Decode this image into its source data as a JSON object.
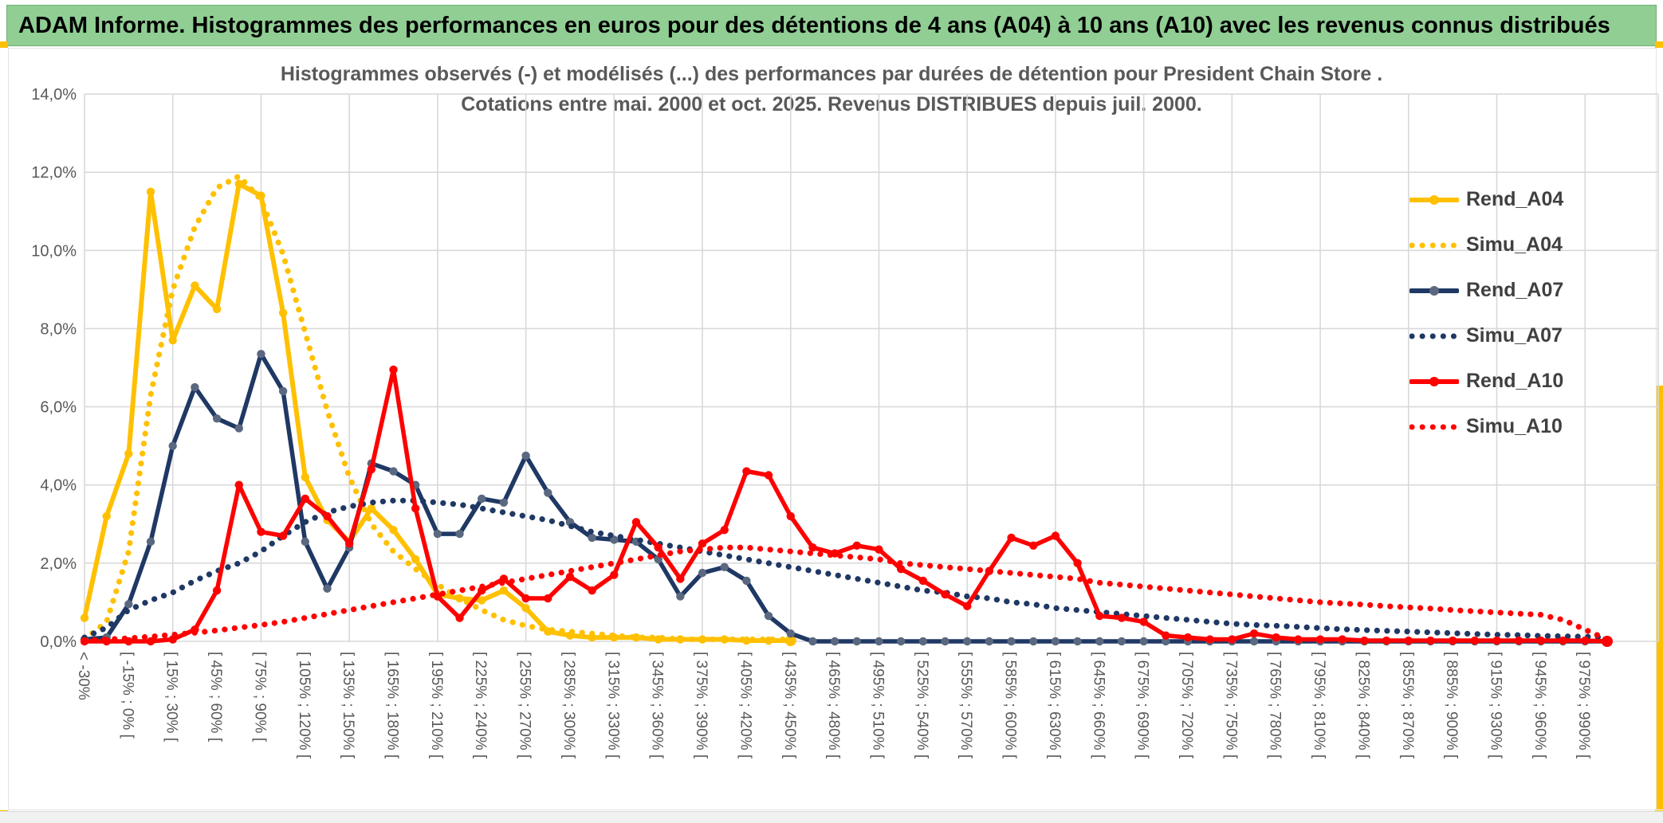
{
  "header": {
    "title": "ADAM Informe. Histogrammes des performances en euros pour des détentions de 4 ans (A04) à 10 ans (A10) avec les revenus connus distribués"
  },
  "colors": {
    "header_green": "#90CE94",
    "accent_gold": "#FFC000",
    "series_gold": "#FFC000",
    "series_navy": "#1F3864",
    "series_navy_marker": "#5A6880",
    "series_red": "#FF0000",
    "gridline": "#D9D9D9",
    "axis_text": "#595959",
    "legend_text": "#404040"
  },
  "chart_data": {
    "type": "line",
    "title_line1": "Histogrammes observés (-) et modélisés (...) des performances par durées de détention pour President Chain Store .",
    "title_line2": "Cotations entre mai. 2000 et oct. 2025. Revenus DISTRIBUES depuis juil. 2000.",
    "ylabel": "",
    "xlabel": "",
    "ylim": [
      0,
      14
    ],
    "grid": true,
    "legend_position": "right",
    "y_tick_labels": [
      "0,0%",
      "2,0%",
      "4,0%",
      "6,0%",
      "8,0%",
      "10,0%",
      "12,0%",
      "14,0%"
    ],
    "y_tick_values": [
      0,
      2,
      4,
      6,
      8,
      10,
      12,
      14
    ],
    "n_bins": 70,
    "x_tick_labels_every_2nd_bin": [
      "< -30%",
      "[ -15% ; 0% [",
      "[ 15% ; 30% [",
      "[ 45% ; 60% [",
      "[ 75% ; 90% [",
      "[ 105% ; 120% [",
      "[ 135% ; 150% [",
      "[ 165% ; 180% [",
      "[ 195% ; 210% [",
      "[ 225% ; 240% [",
      "[ 255% ; 270% [",
      "[ 285% ; 300% [",
      "[ 315% ; 330% [",
      "[ 345% ; 360% [",
      "[ 375% ; 390% [",
      "[ 405% ; 420% [",
      "[ 435% ; 450% [",
      "[ 465% ; 480% [",
      "[ 495% ; 510% [",
      "[ 525% ; 540% [",
      "[ 555% ; 570% [",
      "[ 585% ; 600% [",
      "[ 615% ; 630% [",
      "[ 645% ; 660% [",
      "[ 675% ; 690% [",
      "[ 705% ; 720% [",
      "[ 735% ; 750% [",
      "[ 765% ; 780% [",
      "[ 795% ; 810% [",
      "[ 825% ; 840% [",
      "[ 855% ; 870% [",
      "[ 885% ; 900% [",
      "[ 915% ; 930% [",
      "[ 945% ; 960% [",
      "[ 975% ; 990% ["
    ],
    "series": [
      {
        "name": "Rend_A04",
        "color": "#FFC000",
        "marker_color": "#FFC000",
        "style": "solid",
        "marker": true,
        "values_pct": [
          0.6,
          3.2,
          4.8,
          11.5,
          7.7,
          9.1,
          8.5,
          11.7,
          11.4,
          8.4,
          4.2,
          3.1,
          2.55,
          3.4,
          2.85,
          2.1,
          1.2,
          1.1,
          1.05,
          1.3,
          0.85,
          0.25,
          0.15,
          0.1,
          0.1,
          0.1,
          0.05,
          0.05,
          0.05,
          0.05,
          0.02,
          0.02,
          0.02
        ]
      },
      {
        "name": "Simu_A04",
        "color": "#FFC000",
        "style": "dotted",
        "marker": false,
        "values_pct": [
          0.05,
          0.5,
          2.3,
          6.3,
          9.0,
          10.6,
          11.6,
          11.9,
          11.3,
          9.9,
          7.9,
          5.9,
          4.2,
          3.0,
          2.3,
          1.85,
          1.45,
          1.1,
          0.8,
          0.55,
          0.4,
          0.3,
          0.25,
          0.2,
          0.15,
          0.1,
          0.1,
          0.05,
          0.05,
          0.05,
          0.05,
          0.05,
          0.05
        ]
      },
      {
        "name": "Rend_A07",
        "color": "#1F3864",
        "marker_color": "#5A6880",
        "style": "solid",
        "marker": true,
        "values_pct": [
          0.05,
          0.1,
          0.95,
          2.55,
          5.0,
          6.5,
          5.7,
          5.45,
          7.35,
          6.4,
          2.55,
          1.35,
          2.4,
          4.55,
          4.35,
          4.0,
          2.75,
          2.75,
          3.65,
          3.55,
          4.75,
          3.8,
          3.05,
          2.65,
          2.6,
          2.55,
          2.1,
          1.15,
          1.75,
          1.9,
          1.55,
          0.65,
          0.2,
          0,
          0,
          0,
          0,
          0,
          0,
          0,
          0,
          0,
          0,
          0,
          0,
          0,
          0,
          0,
          0,
          0,
          0,
          0,
          0,
          0,
          0,
          0,
          0,
          0,
          0,
          0,
          0,
          0,
          0,
          0,
          0,
          0,
          0,
          0,
          0,
          0
        ]
      },
      {
        "name": "Simu_A07",
        "color": "#1F3864",
        "style": "dotted",
        "marker": false,
        "values_pct": [
          0.1,
          0.35,
          0.8,
          1.05,
          1.25,
          1.55,
          1.8,
          2.0,
          2.3,
          2.7,
          3.05,
          3.3,
          3.45,
          3.55,
          3.6,
          3.6,
          3.55,
          3.5,
          3.4,
          3.3,
          3.2,
          3.1,
          2.95,
          2.8,
          2.7,
          2.6,
          2.5,
          2.4,
          2.3,
          2.2,
          2.1,
          2.0,
          1.9,
          1.8,
          1.7,
          1.6,
          1.5,
          1.4,
          1.3,
          1.25,
          1.15,
          1.1,
          1.0,
          0.95,
          0.85,
          0.8,
          0.75,
          0.7,
          0.65,
          0.6,
          0.55,
          0.5,
          0.45,
          0.42,
          0.4,
          0.37,
          0.34,
          0.31,
          0.29,
          0.27,
          0.25,
          0.23,
          0.21,
          0.19,
          0.17,
          0.16,
          0.14,
          0.13,
          0.12,
          0.1
        ]
      },
      {
        "name": "Rend_A10",
        "color": "#FF0000",
        "marker_color": "#FF0000",
        "style": "solid",
        "marker": true,
        "values_pct": [
          0,
          0,
          0,
          0,
          0.05,
          0.3,
          1.3,
          4.0,
          2.8,
          2.7,
          3.65,
          3.2,
          2.5,
          4.4,
          6.95,
          3.4,
          1.15,
          0.6,
          1.3,
          1.6,
          1.1,
          1.1,
          1.65,
          1.3,
          1.7,
          3.05,
          2.4,
          1.6,
          2.5,
          2.85,
          4.35,
          4.25,
          3.2,
          2.4,
          2.25,
          2.45,
          2.35,
          1.85,
          1.55,
          1.2,
          0.9,
          1.8,
          2.65,
          2.45,
          2.7,
          2.0,
          0.65,
          0.6,
          0.5,
          0.15,
          0.1,
          0.05,
          0.05,
          0.2,
          0.1,
          0.05,
          0.05,
          0.05,
          0.02,
          0.02,
          0.02,
          0.02,
          0.02,
          0.02,
          0.02,
          0.02,
          0.02,
          0.02,
          0.02,
          0
        ]
      },
      {
        "name": "Simu_A10",
        "color": "#FF0000",
        "style": "dotted",
        "marker": false,
        "values_pct": [
          0.02,
          0.05,
          0.08,
          0.12,
          0.17,
          0.22,
          0.28,
          0.35,
          0.42,
          0.5,
          0.6,
          0.7,
          0.8,
          0.9,
          1.0,
          1.1,
          1.2,
          1.3,
          1.4,
          1.5,
          1.6,
          1.7,
          1.8,
          1.9,
          2.0,
          2.1,
          2.2,
          2.3,
          2.35,
          2.4,
          2.4,
          2.35,
          2.3,
          2.25,
          2.2,
          2.15,
          2.1,
          2.0,
          1.95,
          1.9,
          1.85,
          1.8,
          1.75,
          1.7,
          1.65,
          1.6,
          1.5,
          1.45,
          1.4,
          1.35,
          1.3,
          1.25,
          1.2,
          1.15,
          1.1,
          1.05,
          1.0,
          0.97,
          0.94,
          0.9,
          0.87,
          0.84,
          0.8,
          0.77,
          0.74,
          0.71,
          0.68,
          0.55,
          0.3,
          0.05
        ]
      }
    ],
    "legend_entries": [
      "Rend_A04",
      "Simu_A04",
      "Rend_A07",
      "Simu_A07",
      "Rend_A10",
      "Simu_A10"
    ]
  }
}
